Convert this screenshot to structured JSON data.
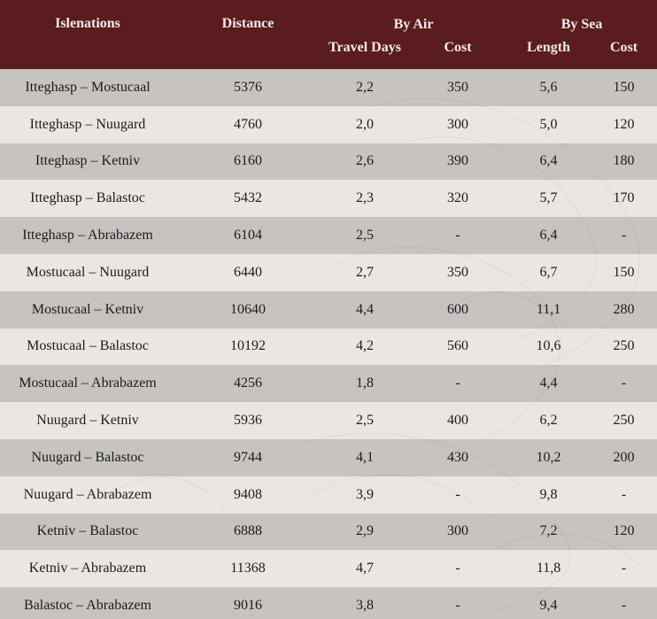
{
  "colors": {
    "header_bg": "#5a1c1e",
    "header_text": "#f3ece6",
    "row_dark": "#b2b0ad",
    "row_light": "#e8e6e3",
    "cell_text": "#1c1c1c"
  },
  "header": {
    "route": "Islenations",
    "distance": "Distance",
    "by_air": "By Air",
    "by_sea": "By Sea",
    "travel_days": "Travel Days",
    "air_cost": "Cost",
    "length": "Length",
    "sea_cost": "Cost"
  },
  "rows": [
    {
      "route": "Itteghasp – Mostucaal",
      "distance": "5376",
      "days": "2,2",
      "air_cost": "350",
      "length": "5,6",
      "sea_cost": "150"
    },
    {
      "route": "Itteghasp – Nuugard",
      "distance": "4760",
      "days": "2,0",
      "air_cost": "300",
      "length": "5,0",
      "sea_cost": "120"
    },
    {
      "route": "Itteghasp – Ketniv",
      "distance": "6160",
      "days": "2,6",
      "air_cost": "390",
      "length": "6,4",
      "sea_cost": "180"
    },
    {
      "route": "Itteghasp – Balastoc",
      "distance": "5432",
      "days": "2,3",
      "air_cost": "320",
      "length": "5,7",
      "sea_cost": "170"
    },
    {
      "route": "Itteghasp – Abrabazem",
      "distance": "6104",
      "days": "2,5",
      "air_cost": "-",
      "length": "6,4",
      "sea_cost": "-"
    },
    {
      "route": "Mostucaal – Nuugard",
      "distance": "6440",
      "days": "2,7",
      "air_cost": "350",
      "length": "6,7",
      "sea_cost": "150"
    },
    {
      "route": "Mostucaal – Ketniv",
      "distance": "10640",
      "days": "4,4",
      "air_cost": "600",
      "length": "11,1",
      "sea_cost": "280"
    },
    {
      "route": "Mostucaal – Balastoc",
      "distance": "10192",
      "days": "4,2",
      "air_cost": "560",
      "length": "10,6",
      "sea_cost": "250"
    },
    {
      "route": "Mostucaal – Abrabazem",
      "distance": "4256",
      "days": "1,8",
      "air_cost": "-",
      "length": "4,4",
      "sea_cost": "-"
    },
    {
      "route": "Nuugard – Ketniv",
      "distance": "5936",
      "days": "2,5",
      "air_cost": "400",
      "length": "6,2",
      "sea_cost": "250"
    },
    {
      "route": "Nuugard – Balastoc",
      "distance": "9744",
      "days": "4,1",
      "air_cost": "430",
      "length": "10,2",
      "sea_cost": "200"
    },
    {
      "route": "Nuugard – Abrabazem",
      "distance": "9408",
      "days": "3,9",
      "air_cost": "-",
      "length": "9,8",
      "sea_cost": "-"
    },
    {
      "route": "Ketniv – Balastoc",
      "distance": "6888",
      "days": "2,9",
      "air_cost": "300",
      "length": "7,2",
      "sea_cost": "120"
    },
    {
      "route": "Ketniv – Abrabazem",
      "distance": "11368",
      "days": "4,7",
      "air_cost": "-",
      "length": "11,8",
      "sea_cost": "-"
    },
    {
      "route": "Balastoc – Abrabazem",
      "distance": "9016",
      "days": "3,8",
      "air_cost": "-",
      "length": "9,4",
      "sea_cost": "-"
    }
  ]
}
